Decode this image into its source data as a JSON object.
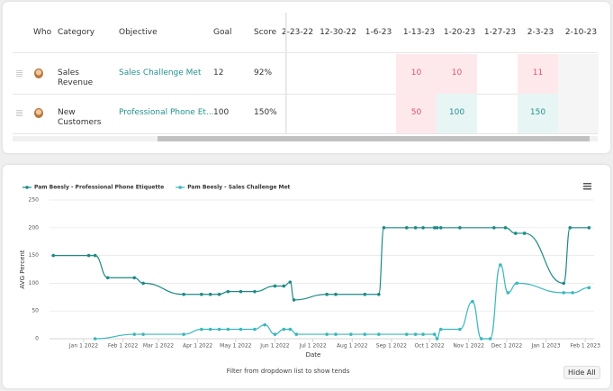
{
  "table": {
    "headers": [
      "Who",
      "Category",
      "Objective",
      "Goal",
      "Score"
    ],
    "date_columns": [
      "2-23-22",
      "12-30-22",
      "1-6-23",
      "1-13-23",
      "1-20-23",
      "1-27-23",
      "2-3-23",
      "2-10-23"
    ],
    "rows": [
      {
        "category": "Sales Revenue",
        "objective": "Sales Challenge Met",
        "goal": 12,
        "score": "92%",
        "cells": [
          null,
          null,
          null,
          10,
          10,
          null,
          11,
          null
        ],
        "cell_colors": [
          null,
          null,
          null,
          "#fde9ec",
          "#fde9ec",
          null,
          "#fde9ec",
          "#f5f5f5"
        ]
      },
      {
        "category": "New Customers",
        "objective": "Professional Phone Et...",
        "goal": 100,
        "score": "150%",
        "cells": [
          null,
          null,
          null,
          50,
          100,
          null,
          150,
          null
        ],
        "cell_colors": [
          null,
          null,
          null,
          "#fde9ec",
          "#e8f5f5",
          null,
          "#e8f5f5",
          "#f5f5f5"
        ]
      }
    ]
  },
  "chart_data": {
    "type": "line",
    "x_label": "Date",
    "y_label": "AVG Percent",
    "xlim": [
      "2021-12-05",
      "2023-02-08"
    ],
    "xticks": [
      {
        "value": "2022-01-01",
        "label": "Jan 1 2022"
      },
      {
        "value": "2022-02-01",
        "label": "Feb 1 2022"
      },
      {
        "value": "2022-03-01",
        "label": "Mar 1 2022"
      },
      {
        "value": "2022-04-01",
        "label": "Apr 1 2022"
      },
      {
        "value": "2022-05-01",
        "label": "May 1 2022"
      },
      {
        "value": "2022-06-01",
        "label": "Jun 1 2022"
      },
      {
        "value": "2022-07-01",
        "label": "Jul 1 2022"
      },
      {
        "value": "2022-08-01",
        "label": "Aug 1 2022"
      },
      {
        "value": "2022-09-01",
        "label": "Sep 1 2022"
      },
      {
        "value": "2022-10-01",
        "label": "Oct 1 2022"
      },
      {
        "value": "2022-11-01",
        "label": "Nov 1 2022"
      },
      {
        "value": "2022-12-01",
        "label": "Dec 1 2022"
      },
      {
        "value": "2023-01-01",
        "label": "Jan 1 2023"
      },
      {
        "value": "2023-02-01",
        "label": "Feb 1 2023"
      }
    ],
    "ylim": [
      0,
      250
    ],
    "yticks": [
      0,
      50,
      100,
      150,
      200,
      250
    ],
    "grid": true,
    "series": [
      {
        "name": "Pam Beesly - Professional Phone Etiquette",
        "color": "#1d8a86",
        "x": [
          "2021-12-08",
          "2022-01-05",
          "2022-01-10",
          "2022-01-20",
          "2022-02-10",
          "2022-02-17",
          "2022-03-21",
          "2022-04-04",
          "2022-04-11",
          "2022-04-18",
          "2022-04-25",
          "2022-05-05",
          "2022-05-16",
          "2022-06-01",
          "2022-06-08",
          "2022-06-13",
          "2022-06-16",
          "2022-07-12",
          "2022-07-19",
          "2022-08-11",
          "2022-08-22",
          "2022-08-26",
          "2022-09-13",
          "2022-09-20",
          "2022-09-26",
          "2022-10-05",
          "2022-10-07",
          "2022-10-10",
          "2022-10-25",
          "2022-11-21",
          "2022-11-30",
          "2022-12-08",
          "2022-12-15",
          "2023-01-15",
          "2023-01-20",
          "2023-02-04"
        ],
        "values": [
          150,
          150,
          150,
          110,
          110,
          100,
          80,
          80,
          80,
          80,
          85,
          85,
          85,
          95,
          95,
          102,
          70,
          80,
          80,
          80,
          80,
          200,
          200,
          200,
          200,
          200,
          200,
          200,
          200,
          200,
          200,
          190,
          190,
          100,
          200,
          200
        ]
      },
      {
        "name": "Pam Beesly - Sales Challenge Met",
        "color": "#3bb7bd",
        "x": [
          "2022-01-10",
          "2022-02-10",
          "2022-02-17",
          "2022-03-21",
          "2022-04-04",
          "2022-04-11",
          "2022-04-18",
          "2022-04-25",
          "2022-05-05",
          "2022-05-16",
          "2022-05-24",
          "2022-06-01",
          "2022-06-08",
          "2022-06-13",
          "2022-06-18",
          "2022-07-12",
          "2022-07-19",
          "2022-07-31",
          "2022-08-11",
          "2022-08-22",
          "2022-09-13",
          "2022-09-20",
          "2022-09-26",
          "2022-10-05",
          "2022-10-07",
          "2022-10-10",
          "2022-10-25",
          "2022-11-04",
          "2022-11-11",
          "2022-11-18",
          "2022-11-26",
          "2022-12-02",
          "2022-12-09",
          "2023-01-15",
          "2023-01-22",
          "2023-02-04"
        ],
        "values": [
          0,
          8,
          8,
          8,
          17,
          17,
          17,
          17,
          17,
          17,
          25,
          8,
          17,
          17,
          8,
          8,
          8,
          8,
          8,
          8,
          8,
          8,
          8,
          8,
          0,
          17,
          17,
          67,
          0,
          0,
          133,
          83,
          100,
          83,
          83,
          92
        ]
      }
    ]
  },
  "footer": {
    "hint": "Filter from dropdown list to show tends",
    "button": "Hide All"
  }
}
